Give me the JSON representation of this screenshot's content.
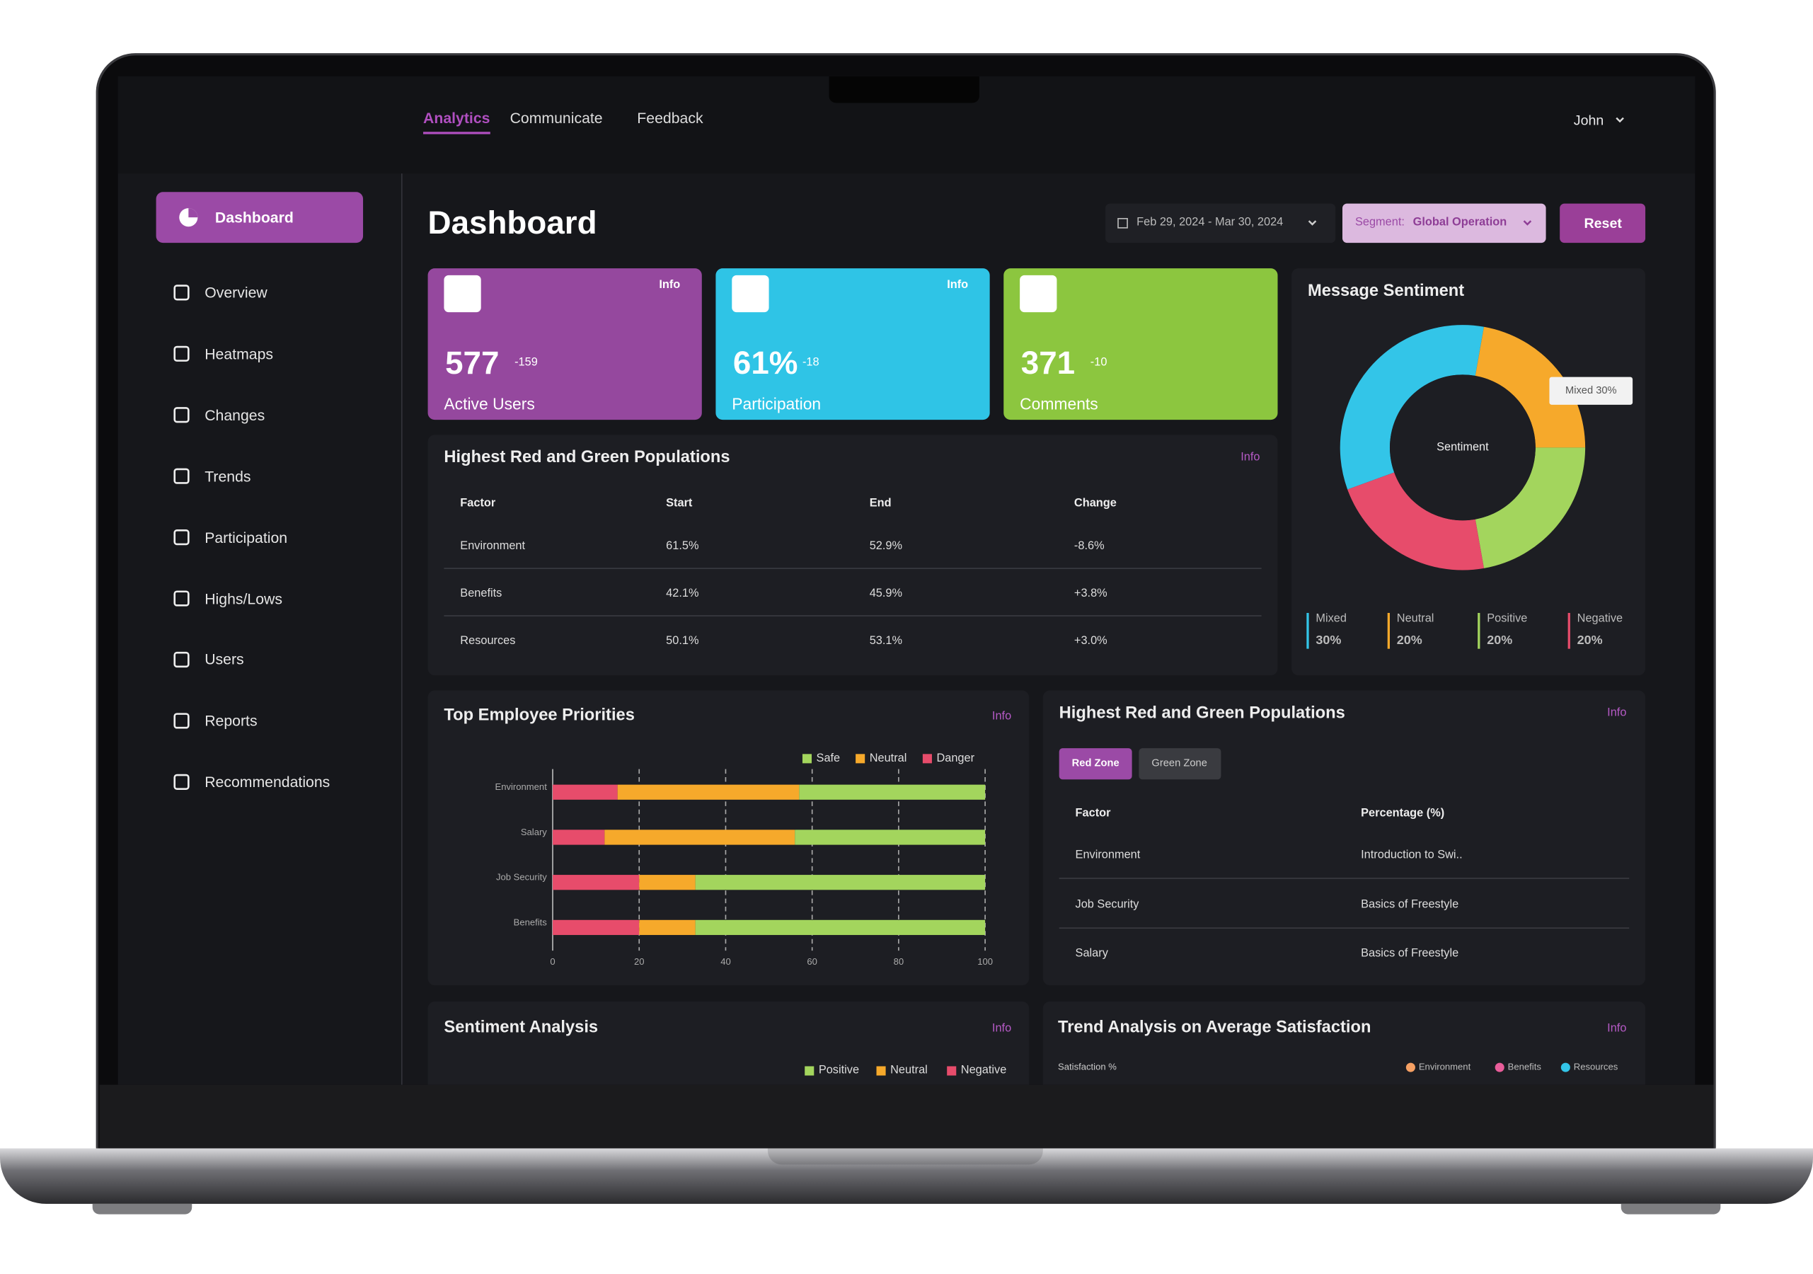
{
  "nav": {
    "tabs": [
      "Analytics",
      "Communicate",
      "Feedback"
    ],
    "user": "John"
  },
  "sidebar": {
    "items": [
      "Dashboard",
      "Overview",
      "Heatmaps",
      "Changes",
      "Trends",
      "Participation",
      "Highs/Lows",
      "Users",
      "Reports",
      "Recommendations"
    ]
  },
  "header": {
    "title": "Dashboard",
    "date_range": "Feb 29, 2024 - Mar 30, 2024",
    "segment_label": "Segment:",
    "segment_value": "Global Operation",
    "reset": "Reset"
  },
  "stats": [
    {
      "value": "577",
      "change": "-159",
      "label": "Active Users",
      "info": "Info"
    },
    {
      "value": "61%",
      "change": "-18",
      "label": "Participation",
      "info": "Info"
    },
    {
      "value": "371",
      "change": "-10",
      "label": "Comments"
    }
  ],
  "populations_table": {
    "title": "Highest Red and Green Populations",
    "info": "Info",
    "columns": [
      "Factor",
      "Start",
      "End",
      "Change"
    ],
    "rows": [
      [
        "Environment",
        "61.5%",
        "52.9%",
        "-8.6%"
      ],
      [
        "Benefits",
        "42.1%",
        "45.9%",
        "+3.8%"
      ],
      [
        "Resources",
        "50.1%",
        "53.1%",
        "+3.0%"
      ]
    ]
  },
  "zone_table": {
    "title": "Highest Red and Green Populations",
    "info": "Info",
    "tabs": [
      "Red Zone",
      "Green Zone"
    ],
    "columns": [
      "Factor",
      "Percentage (%)"
    ],
    "rows": [
      [
        "Environment",
        "Introduction to Swi.."
      ],
      [
        "Job Security",
        "Basics of Freestyle"
      ],
      [
        "Salary",
        "Basics of Freestyle"
      ]
    ]
  },
  "sentiment_analysis": {
    "title": "Sentiment Analysis",
    "info": "Info",
    "legend": [
      "Positive",
      "Neutral",
      "Negative"
    ]
  },
  "trend_analysis": {
    "title": "Trend Analysis on Average Satisfaction",
    "info": "Info",
    "y_label": "Satisfaction %",
    "legend": [
      "Environment",
      "Benefits",
      "Resources"
    ]
  },
  "chart_data": [
    {
      "type": "pie",
      "title": "Message Sentiment",
      "center_label": "Sentiment",
      "tooltip": "Mixed 30%",
      "categories": [
        "Mixed",
        "Neutral",
        "Positive",
        "Negative"
      ],
      "values": [
        30,
        20,
        20,
        20
      ],
      "value_labels": [
        "30%",
        "20%",
        "20%",
        "20%"
      ],
      "colors": [
        "#33c5e8",
        "#f6a92b",
        "#a3d55d",
        "#e74c6b"
      ]
    },
    {
      "type": "bar",
      "orientation": "horizontal",
      "stacked": true,
      "title": "Top Employee Priorities",
      "info": "Info",
      "categories": [
        "Environment",
        "Salary",
        "Job Security",
        "Benefits"
      ],
      "series": [
        {
          "name": "Danger",
          "color": "#e74c6b",
          "values": [
            15,
            12,
            20,
            20
          ]
        },
        {
          "name": "Neutral",
          "color": "#f6a92b",
          "values": [
            42,
            44,
            13,
            13
          ]
        },
        {
          "name": "Safe",
          "color": "#a3d55d",
          "values": [
            43,
            44,
            67,
            67
          ]
        }
      ],
      "xlim": [
        0,
        100
      ],
      "xticks": [
        0,
        20,
        40,
        60,
        80,
        100
      ],
      "grid": true
    }
  ]
}
